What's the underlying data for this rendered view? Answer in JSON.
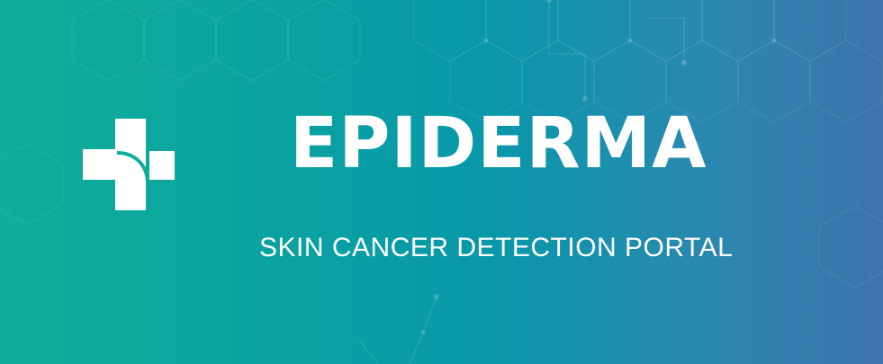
{
  "brand": {
    "name": "EPIDERMA",
    "tagline": "SKIN CANCER DETECTION PORTAL",
    "logo_icon": "medical-cross-icon"
  },
  "theme": {
    "gradient_start": "#0eae9a",
    "gradient_mid": "#0898aa",
    "gradient_end": "#3c74ab",
    "text_color": "#ffffff"
  }
}
